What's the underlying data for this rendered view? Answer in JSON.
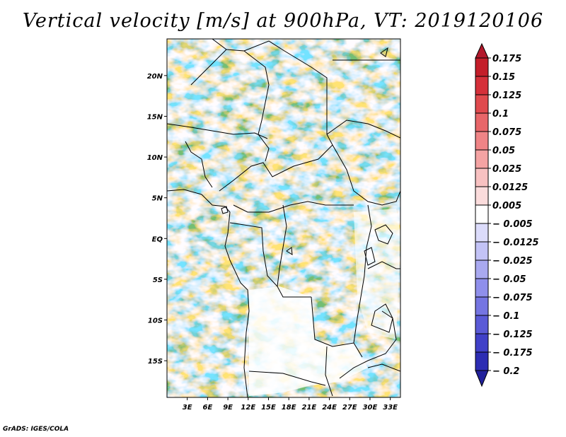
{
  "title": "Vertical velocity [m/s] at 900hPa, VT: 2019120106",
  "footer": "GrADS: IGES/COLA",
  "map": {
    "lon_range": [
      0,
      34.5
    ],
    "lat_range": [
      -19.5,
      24.5
    ],
    "y_ticks": [
      {
        "label": "20N",
        "lat": 20
      },
      {
        "label": "15N",
        "lat": 15
      },
      {
        "label": "10N",
        "lat": 10
      },
      {
        "label": "5N",
        "lat": 5
      },
      {
        "label": "EQ",
        "lat": 0
      },
      {
        "label": "5S",
        "lat": -5
      },
      {
        "label": "10S",
        "lat": -10
      },
      {
        "label": "15S",
        "lat": -15
      }
    ],
    "x_ticks": [
      {
        "label": "3E",
        "lon": 3
      },
      {
        "label": "6E",
        "lon": 6
      },
      {
        "label": "9E",
        "lon": 9
      },
      {
        "label": "12E",
        "lon": 12
      },
      {
        "label": "15E",
        "lon": 15
      },
      {
        "label": "18E",
        "lon": 18
      },
      {
        "label": "21E",
        "lon": 21
      },
      {
        "label": "24E",
        "lon": 24
      },
      {
        "label": "27E",
        "lon": 27
      },
      {
        "label": "30E",
        "lon": 30
      },
      {
        "label": "33E",
        "lon": 33
      }
    ]
  },
  "colorbar": {
    "top_color": "#b2182b",
    "bottom_color": "#21209b",
    "boxes": [
      {
        "color": "#c41e2a"
      },
      {
        "color": "#d5303a"
      },
      {
        "color": "#e04a4e"
      },
      {
        "color": "#e86669"
      },
      {
        "color": "#ef8486"
      },
      {
        "color": "#f4a3a3"
      },
      {
        "color": "#f8c1c1"
      },
      {
        "color": "#fbdcdc"
      },
      {
        "color": "#ffffff"
      },
      {
        "color": "#dcdcfb"
      },
      {
        "color": "#c3c3f6"
      },
      {
        "color": "#a9a9f0"
      },
      {
        "color": "#8f8feb"
      },
      {
        "color": "#7575e2"
      },
      {
        "color": "#5a5ad7"
      },
      {
        "color": "#4040c8"
      },
      {
        "color": "#2d2db3"
      }
    ],
    "labels": [
      "0.175",
      "0.15",
      "0.125",
      "0.1",
      "0.075",
      "0.05",
      "0.025",
      "0.0125",
      "0.005",
      "− 0.005",
      "− 0.0125",
      "− 0.025",
      "− 0.05",
      "− 0.075",
      "− 0.1",
      "− 0.125",
      "− 0.175",
      "− 0.2"
    ]
  }
}
